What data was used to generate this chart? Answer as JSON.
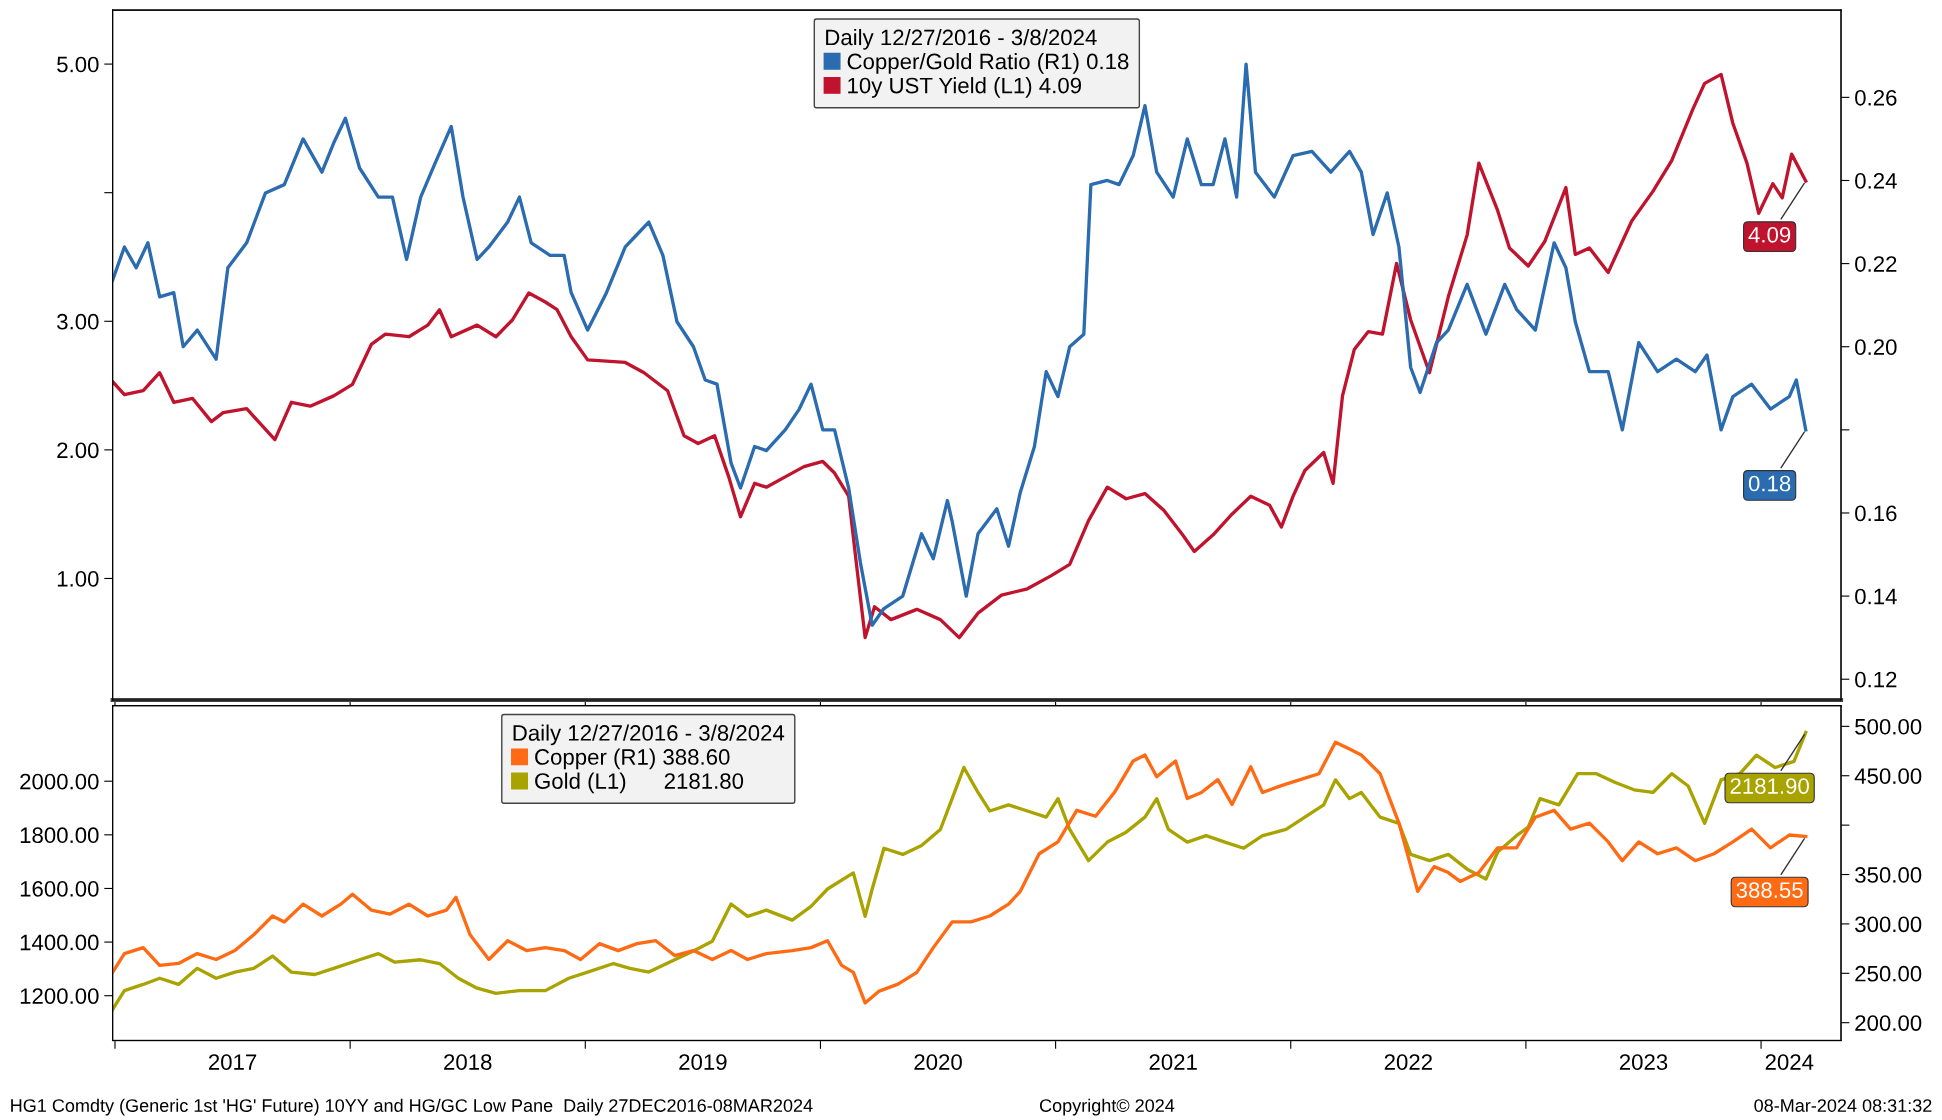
{
  "chart_data": [
    {
      "type": "line",
      "legend_title": "Daily 12/27/2016 - 3/8/2024",
      "legend": "top",
      "grid": false,
      "tick_labels": "y",
      "xlim": [
        2016.99,
        2024.34
      ],
      "xticks": [
        {
          "value": 2017,
          "label": null
        },
        {
          "value": 2018,
          "label": null
        },
        {
          "value": 2019,
          "label": null
        },
        {
          "value": 2020,
          "label": null
        },
        {
          "value": 2021,
          "label": null
        },
        {
          "value": 2022,
          "label": null
        },
        {
          "value": 2023,
          "label": null
        },
        {
          "value": 2024,
          "label": null
        }
      ],
      "ylim": [
        0.055,
        5.42
      ],
      "yticks": [
        {
          "value": 1,
          "label": "1.00"
        },
        {
          "value": 2,
          "label": "2.00"
        },
        {
          "value": 3,
          "label": "3.00"
        },
        {
          "value": 4,
          "label": null
        },
        {
          "value": 5,
          "label": "5.00"
        }
      ],
      "y2lim": [
        0.115,
        0.281
      ],
      "y2ticks": [
        {
          "value": 0.12,
          "label": "0.12"
        },
        {
          "value": 0.14,
          "label": "0.14"
        },
        {
          "value": 0.16,
          "label": "0.16"
        },
        {
          "value": 0.18,
          "label": null
        },
        {
          "value": 0.2,
          "label": "0.20"
        },
        {
          "value": 0.22,
          "label": "0.22"
        },
        {
          "value": 0.24,
          "label": "0.24"
        },
        {
          "value": 0.26,
          "label": "0.26"
        }
      ],
      "series": [
        {
          "name": "Copper/Gold Ratio (R1) 0.18",
          "color": "#2b6cb0",
          "axis": "y2",
          "x": [
            2016.99,
            2017.04,
            2017.09,
            2017.14,
            2017.19,
            2017.25,
            2017.29,
            2017.35,
            2017.43,
            2017.48,
            2017.56,
            2017.64,
            2017.72,
            2017.8,
            2017.88,
            2017.93,
            2017.98,
            2018.04,
            2018.12,
            2018.18,
            2018.24,
            2018.3,
            2018.36,
            2018.43,
            2018.48,
            2018.54,
            2018.59,
            2018.67,
            2018.72,
            2018.77,
            2018.85,
            2018.91,
            2018.94,
            2019.01,
            2019.09,
            2019.17,
            2019.22,
            2019.27,
            2019.33,
            2019.39,
            2019.46,
            2019.51,
            2019.56,
            2019.62,
            2019.66,
            2019.72,
            2019.77,
            2019.85,
            2019.91,
            2019.96,
            2020.01,
            2020.06,
            2020.12,
            2020.17,
            2020.22,
            2020.27,
            2020.35,
            2020.43,
            2020.48,
            2020.54,
            2020.56,
            2020.62,
            2020.67,
            2020.75,
            2020.8,
            2020.85,
            2020.91,
            2020.96,
            2021.01,
            2021.06,
            2021.12,
            2021.15,
            2021.22,
            2021.27,
            2021.33,
            2021.38,
            2021.43,
            2021.5,
            2021.56,
            2021.62,
            2021.67,
            2021.72,
            2021.77,
            2021.81,
            2021.85,
            2021.93,
            2022.01,
            2022.09,
            2022.17,
            2022.25,
            2022.3,
            2022.35,
            2022.41,
            2022.46,
            2022.51,
            2022.55,
            2022.62,
            2022.67,
            2022.75,
            2022.83,
            2022.91,
            2022.96,
            2023.04,
            2023.12,
            2023.17,
            2023.21,
            2023.27,
            2023.35,
            2023.41,
            2023.48,
            2023.56,
            2023.64,
            2023.72,
            2023.77,
            2023.83,
            2023.88,
            2023.96,
            2024.04,
            2024.12,
            2024.15,
            2024.19
          ],
          "values": [
            0.216,
            0.224,
            0.219,
            0.225,
            0.212,
            0.213,
            0.2,
            0.204,
            0.197,
            0.219,
            0.225,
            0.237,
            0.239,
            0.25,
            0.242,
            0.249,
            0.255,
            0.243,
            0.236,
            0.236,
            0.221,
            0.236,
            0.244,
            0.253,
            0.236,
            0.221,
            0.224,
            0.23,
            0.236,
            0.225,
            0.222,
            0.222,
            0.213,
            0.204,
            0.213,
            0.224,
            0.227,
            0.23,
            0.222,
            0.206,
            0.2,
            0.192,
            0.191,
            0.172,
            0.166,
            0.176,
            0.175,
            0.18,
            0.185,
            0.191,
            0.18,
            0.18,
            0.166,
            0.148,
            0.133,
            0.137,
            0.14,
            0.155,
            0.149,
            0.163,
            0.158,
            0.14,
            0.155,
            0.161,
            0.152,
            0.165,
            0.176,
            0.194,
            0.188,
            0.2,
            0.203,
            0.239,
            0.24,
            0.239,
            0.246,
            0.258,
            0.242,
            0.236,
            0.25,
            0.239,
            0.239,
            0.25,
            0.236,
            0.268,
            0.242,
            0.236,
            0.246,
            0.247,
            0.242,
            0.247,
            0.242,
            0.227,
            0.237,
            0.224,
            0.195,
            0.189,
            0.201,
            0.204,
            0.215,
            0.203,
            0.215,
            0.209,
            0.204,
            0.225,
            0.219,
            0.206,
            0.194,
            0.194,
            0.18,
            0.201,
            0.194,
            0.197,
            0.194,
            0.198,
            0.18,
            0.188,
            0.191,
            0.185,
            0.188,
            0.192,
            0.18
          ],
          "value_labels": [
            null,
            null,
            null,
            null,
            null,
            null,
            null,
            null,
            null,
            null,
            null,
            null,
            null,
            null,
            null,
            null,
            null,
            null,
            null,
            null,
            null,
            null,
            null,
            null,
            null,
            null,
            null,
            null,
            null,
            null,
            null,
            null,
            null,
            null,
            null,
            null,
            null,
            null,
            null,
            null,
            null,
            null,
            null,
            null,
            null,
            null,
            null,
            null,
            null,
            null,
            null,
            null,
            null,
            null,
            null,
            null,
            null,
            null,
            null,
            null,
            null,
            null,
            null,
            null,
            null,
            null,
            null,
            null,
            null,
            null,
            null,
            null,
            null,
            null,
            null,
            null,
            null,
            null,
            null,
            null,
            null,
            null,
            null,
            null,
            null,
            null,
            null,
            null,
            null,
            null,
            null,
            null,
            null,
            null,
            null,
            null,
            null,
            null,
            null,
            null,
            null,
            null,
            null,
            null,
            null,
            null,
            null,
            null,
            null,
            null,
            null,
            null,
            null,
            null,
            null,
            null,
            null,
            null,
            null,
            null,
            "0.18"
          ]
        },
        {
          "name": "10y UST Yield (L1) 4.09",
          "color": "#c0142e",
          "axis": "y",
          "x": [
            2016.99,
            2017.04,
            2017.12,
            2017.19,
            2017.25,
            2017.33,
            2017.41,
            2017.46,
            2017.56,
            2017.68,
            2017.75,
            2017.83,
            2017.93,
            2018.01,
            2018.09,
            2018.15,
            2018.25,
            2018.33,
            2018.38,
            2018.43,
            2018.54,
            2018.62,
            2018.69,
            2018.76,
            2018.83,
            2018.88,
            2018.94,
            2019.01,
            2019.09,
            2019.17,
            2019.25,
            2019.35,
            2019.42,
            2019.48,
            2019.55,
            2019.61,
            2019.66,
            2019.72,
            2019.77,
            2019.85,
            2019.93,
            2020.01,
            2020.06,
            2020.12,
            2020.15,
            2020.19,
            2020.23,
            2020.3,
            2020.41,
            2020.51,
            2020.59,
            2020.67,
            2020.77,
            2020.88,
            2020.98,
            2021.06,
            2021.14,
            2021.22,
            2021.3,
            2021.38,
            2021.46,
            2021.54,
            2021.59,
            2021.67,
            2021.75,
            2021.83,
            2021.91,
            2021.96,
            2022.01,
            2022.06,
            2022.14,
            2022.18,
            2022.22,
            2022.27,
            2022.33,
            2022.39,
            2022.45,
            2022.51,
            2022.59,
            2022.67,
            2022.75,
            2022.8,
            2022.88,
            2022.93,
            2023.01,
            2023.08,
            2023.17,
            2023.21,
            2023.27,
            2023.35,
            2023.45,
            2023.54,
            2023.62,
            2023.71,
            2023.76,
            2023.83,
            2023.88,
            2023.94,
            2023.99,
            2024.05,
            2024.09,
            2024.13,
            2024.19
          ],
          "values": [
            2.53,
            2.43,
            2.46,
            2.6,
            2.37,
            2.4,
            2.22,
            2.29,
            2.32,
            2.08,
            2.37,
            2.34,
            2.42,
            2.51,
            2.82,
            2.9,
            2.88,
            2.97,
            3.09,
            2.88,
            2.97,
            2.88,
            3.01,
            3.22,
            3.15,
            3.09,
            2.88,
            2.7,
            2.69,
            2.68,
            2.6,
            2.46,
            2.11,
            2.05,
            2.11,
            1.79,
            1.48,
            1.74,
            1.71,
            1.79,
            1.87,
            1.91,
            1.82,
            1.64,
            1.16,
            0.54,
            0.78,
            0.68,
            0.76,
            0.68,
            0.54,
            0.73,
            0.87,
            0.92,
            1.02,
            1.11,
            1.45,
            1.71,
            1.62,
            1.66,
            1.53,
            1.34,
            1.21,
            1.34,
            1.5,
            1.64,
            1.57,
            1.4,
            1.64,
            1.84,
            1.98,
            1.74,
            2.42,
            2.78,
            2.92,
            2.9,
            3.45,
            3.01,
            2.6,
            3.19,
            3.67,
            4.23,
            3.86,
            3.57,
            3.43,
            3.62,
            4.04,
            3.52,
            3.57,
            3.38,
            3.78,
            4.01,
            4.25,
            4.65,
            4.85,
            4.92,
            4.54,
            4.23,
            3.84,
            4.07,
            3.96,
            4.3,
            4.09
          ],
          "value_labels": [
            null,
            null,
            null,
            null,
            null,
            null,
            null,
            null,
            null,
            null,
            null,
            null,
            null,
            null,
            null,
            null,
            null,
            null,
            null,
            null,
            null,
            null,
            null,
            null,
            null,
            null,
            null,
            null,
            null,
            null,
            null,
            null,
            null,
            null,
            null,
            null,
            null,
            null,
            null,
            null,
            null,
            null,
            null,
            null,
            null,
            null,
            null,
            null,
            null,
            null,
            null,
            null,
            null,
            null,
            null,
            null,
            null,
            null,
            null,
            null,
            null,
            null,
            null,
            null,
            null,
            null,
            null,
            null,
            null,
            null,
            null,
            null,
            null,
            null,
            null,
            null,
            null,
            null,
            null,
            null,
            null,
            null,
            null,
            null,
            null,
            null,
            null,
            null,
            null,
            null,
            null,
            null,
            null,
            null,
            null,
            null,
            null,
            null,
            null,
            null,
            null,
            null,
            "4.09"
          ]
        }
      ]
    },
    {
      "type": "line",
      "legend_title": "Daily 12/27/2016 - 3/8/2024",
      "legend": "top left",
      "grid": false,
      "xlim": [
        2016.99,
        2024.34
      ],
      "xticks": [
        {
          "value": 2017,
          "label": null
        },
        {
          "value": 2017.5,
          "label": "2017"
        },
        {
          "value": 2018,
          "label": null
        },
        {
          "value": 2018.5,
          "label": "2018"
        },
        {
          "value": 2019,
          "label": null
        },
        {
          "value": 2019.5,
          "label": "2019"
        },
        {
          "value": 2020,
          "label": null
        },
        {
          "value": 2020.5,
          "label": "2020"
        },
        {
          "value": 2021,
          "label": null
        },
        {
          "value": 2021.5,
          "label": "2021"
        },
        {
          "value": 2022,
          "label": null
        },
        {
          "value": 2022.5,
          "label": "2022"
        },
        {
          "value": 2023,
          "label": null
        },
        {
          "value": 2023.5,
          "label": "2023"
        },
        {
          "value": 2024,
          "label": null
        },
        {
          "value": 2024.12,
          "label": "2024"
        }
      ],
      "ylim": [
        1033,
        2282
      ],
      "yticks": [
        {
          "value": 1200,
          "label": "1200.00"
        },
        {
          "value": 1400,
          "label": "1400.00"
        },
        {
          "value": 1600,
          "label": "1600.00"
        },
        {
          "value": 1800,
          "label": "1800.00"
        },
        {
          "value": 2000,
          "label": "2000.00"
        }
      ],
      "y2lim": [
        182,
        521
      ],
      "y2ticks": [
        {
          "value": 200,
          "label": "200.00"
        },
        {
          "value": 250,
          "label": "250.00"
        },
        {
          "value": 300,
          "label": "300.00"
        },
        {
          "value": 350,
          "label": "350.00"
        },
        {
          "value": 400,
          "label": null
        },
        {
          "value": 450,
          "label": "450.00"
        },
        {
          "value": 500,
          "label": "500.00"
        }
      ],
      "annotations": [
        "HG1 Comdty (Generic 1st 'HG' Future) 10YY and HG/GC Low Pane  Daily 27DEC2016-08MAR2024",
        "Copyright© 2024",
        "08-Mar-2024 08:31:32"
      ],
      "series": [
        {
          "name": "Copper (R1) 388.60",
          "color": "#ff6a13",
          "axis": "y2",
          "x": [
            2016.99,
            2017.04,
            2017.12,
            2017.19,
            2017.27,
            2017.35,
            2017.43,
            2017.51,
            2017.59,
            2017.67,
            2017.72,
            2017.8,
            2017.88,
            2017.96,
            2018.01,
            2018.09,
            2018.17,
            2018.25,
            2018.33,
            2018.41,
            2018.45,
            2018.51,
            2018.59,
            2018.67,
            2018.75,
            2018.83,
            2018.91,
            2018.98,
            2019.06,
            2019.14,
            2019.22,
            2019.3,
            2019.38,
            2019.46,
            2019.54,
            2019.62,
            2019.69,
            2019.77,
            2019.88,
            2019.96,
            2020.03,
            2020.09,
            2020.14,
            2020.19,
            2020.25,
            2020.33,
            2020.41,
            2020.48,
            2020.56,
            2020.64,
            2020.72,
            2020.8,
            2020.85,
            2020.93,
            2021.01,
            2021.09,
            2021.17,
            2021.25,
            2021.33,
            2021.38,
            2021.43,
            2021.51,
            2021.56,
            2021.62,
            2021.69,
            2021.75,
            2021.83,
            2021.88,
            2021.96,
            2022.04,
            2022.12,
            2022.19,
            2022.25,
            2022.3,
            2022.38,
            2022.46,
            2022.54,
            2022.61,
            2022.67,
            2022.72,
            2022.8,
            2022.88,
            2022.96,
            2023.04,
            2023.12,
            2023.19,
            2023.27,
            2023.35,
            2023.41,
            2023.48,
            2023.56,
            2023.64,
            2023.72,
            2023.8,
            2023.88,
            2023.96,
            2024.04,
            2024.12,
            2024.19
          ],
          "values": [
            251,
            270,
            276,
            258,
            260,
            270,
            264,
            273,
            289,
            308,
            302,
            320,
            308,
            320,
            330,
            314,
            310,
            320,
            308,
            314,
            327,
            289,
            264,
            283,
            273,
            276,
            273,
            264,
            280,
            273,
            280,
            283,
            268,
            273,
            264,
            273,
            264,
            270,
            273,
            276,
            283,
            258,
            251,
            220,
            232,
            239,
            251,
            276,
            302,
            302,
            308,
            320,
            333,
            371,
            383,
            415,
            409,
            433,
            465,
            471,
            449,
            465,
            427,
            433,
            446,
            421,
            459,
            433,
            440,
            446,
            452,
            484,
            477,
            471,
            452,
            402,
            333,
            358,
            352,
            343,
            352,
            377,
            377,
            408,
            415,
            396,
            402,
            383,
            364,
            383,
            371,
            377,
            364,
            371,
            383,
            396,
            377,
            390,
            388.55
          ],
          "value_labels": [
            null,
            null,
            null,
            null,
            null,
            null,
            null,
            null,
            null,
            null,
            null,
            null,
            null,
            null,
            null,
            null,
            null,
            null,
            null,
            null,
            null,
            null,
            null,
            null,
            null,
            null,
            null,
            null,
            null,
            null,
            null,
            null,
            null,
            null,
            null,
            null,
            null,
            null,
            null,
            null,
            null,
            null,
            null,
            null,
            null,
            null,
            null,
            null,
            null,
            null,
            null,
            null,
            null,
            null,
            null,
            null,
            null,
            null,
            null,
            null,
            null,
            null,
            null,
            null,
            null,
            null,
            null,
            null,
            null,
            null,
            null,
            null,
            null,
            null,
            null,
            null,
            null,
            null,
            null,
            null,
            null,
            null,
            null,
            null,
            null,
            null,
            null,
            null,
            null,
            null,
            null,
            null,
            null,
            null,
            null,
            null,
            null,
            null,
            "388.55"
          ]
        },
        {
          "name": "Gold (L1)      2181.80",
          "color": "#a9a300",
          "axis": "y",
          "x": [
            2016.99,
            2017.04,
            2017.12,
            2017.19,
            2017.27,
            2017.35,
            2017.43,
            2017.51,
            2017.59,
            2017.67,
            2017.75,
            2017.85,
            2017.93,
            2018.04,
            2018.12,
            2018.19,
            2018.3,
            2018.38,
            2018.46,
            2018.54,
            2018.62,
            2018.72,
            2018.83,
            2018.93,
            2019.01,
            2019.12,
            2019.19,
            2019.27,
            2019.38,
            2019.46,
            2019.54,
            2019.62,
            2019.69,
            2019.77,
            2019.88,
            2019.96,
            2020.03,
            2020.14,
            2020.19,
            2020.22,
            2020.27,
            2020.35,
            2020.43,
            2020.51,
            2020.56,
            2020.61,
            2020.67,
            2020.72,
            2020.8,
            2020.88,
            2020.96,
            2021.01,
            2021.06,
            2021.14,
            2021.22,
            2021.3,
            2021.38,
            2021.43,
            2021.48,
            2021.56,
            2021.64,
            2021.72,
            2021.8,
            2021.88,
            2021.98,
            2022.06,
            2022.14,
            2022.19,
            2022.25,
            2022.3,
            2022.38,
            2022.46,
            2022.51,
            2022.59,
            2022.67,
            2022.75,
            2022.83,
            2022.88,
            2022.96,
            2023.01,
            2023.06,
            2023.14,
            2023.22,
            2023.3,
            2023.38,
            2023.46,
            2023.54,
            2023.62,
            2023.69,
            2023.76,
            2023.83,
            2023.91,
            2023.98,
            2024.06,
            2024.14,
            2024.19
          ],
          "values": [
            1149,
            1219,
            1242,
            1265,
            1242,
            1302,
            1265,
            1288,
            1302,
            1348,
            1288,
            1279,
            1302,
            1334,
            1357,
            1325,
            1334,
            1320,
            1265,
            1228,
            1209,
            1219,
            1219,
            1265,
            1288,
            1320,
            1302,
            1288,
            1334,
            1367,
            1403,
            1542,
            1496,
            1519,
            1482,
            1533,
            1598,
            1658,
            1496,
            1598,
            1750,
            1727,
            1760,
            1820,
            1935,
            2051,
            1958,
            1889,
            1912,
            1889,
            1866,
            1935,
            1820,
            1704,
            1773,
            1810,
            1866,
            1935,
            1820,
            1773,
            1797,
            1773,
            1750,
            1797,
            1820,
            1866,
            1912,
            2005,
            1935,
            1958,
            1866,
            1843,
            1727,
            1704,
            1727,
            1672,
            1635,
            1736,
            1797,
            1829,
            1935,
            1912,
            2028,
            2028,
            1995,
            1968,
            1958,
            2028,
            1982,
            1843,
            2005,
            2028,
            2097,
            2051,
            2074,
            2181.9
          ],
          "value_labels": [
            null,
            null,
            null,
            null,
            null,
            null,
            null,
            null,
            null,
            null,
            null,
            null,
            null,
            null,
            null,
            null,
            null,
            null,
            null,
            null,
            null,
            null,
            null,
            null,
            null,
            null,
            null,
            null,
            null,
            null,
            null,
            null,
            null,
            null,
            null,
            null,
            null,
            null,
            null,
            null,
            null,
            null,
            null,
            null,
            null,
            null,
            null,
            null,
            null,
            null,
            null,
            null,
            null,
            null,
            null,
            null,
            null,
            null,
            null,
            null,
            null,
            null,
            null,
            null,
            null,
            null,
            null,
            null,
            null,
            null,
            null,
            null,
            null,
            null,
            null,
            null,
            null,
            null,
            null,
            null,
            null,
            null,
            null,
            null,
            null,
            null,
            null,
            null,
            null,
            null,
            null,
            null,
            null,
            null,
            null,
            "2181.90"
          ]
        }
      ]
    }
  ]
}
